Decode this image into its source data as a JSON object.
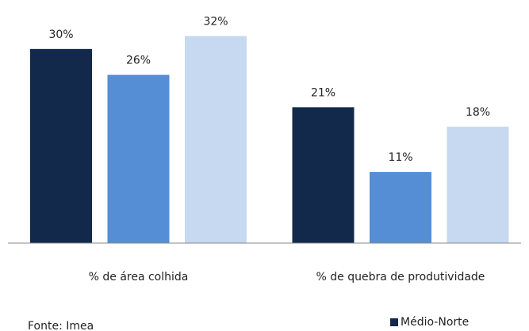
{
  "chart_data": {
    "type": "bar",
    "categories": [
      "% de área colhida",
      "% de quebra de produtividade"
    ],
    "series": [
      {
        "name": "Médio-Norte",
        "color": "#13294b",
        "values": [
          30,
          21
        ],
        "value_labels": [
          "30%",
          "21%"
        ]
      },
      {
        "color": "#558ed5",
        "values": [
          26,
          11
        ],
        "value_labels": [
          "26%",
          "11%"
        ]
      },
      {
        "color": "#c6d9f1",
        "values": [
          32,
          18
        ],
        "value_labels": [
          "32%",
          "18%"
        ]
      }
    ],
    "ylim": [
      0,
      35
    ],
    "source": "Fonte: Imea"
  }
}
